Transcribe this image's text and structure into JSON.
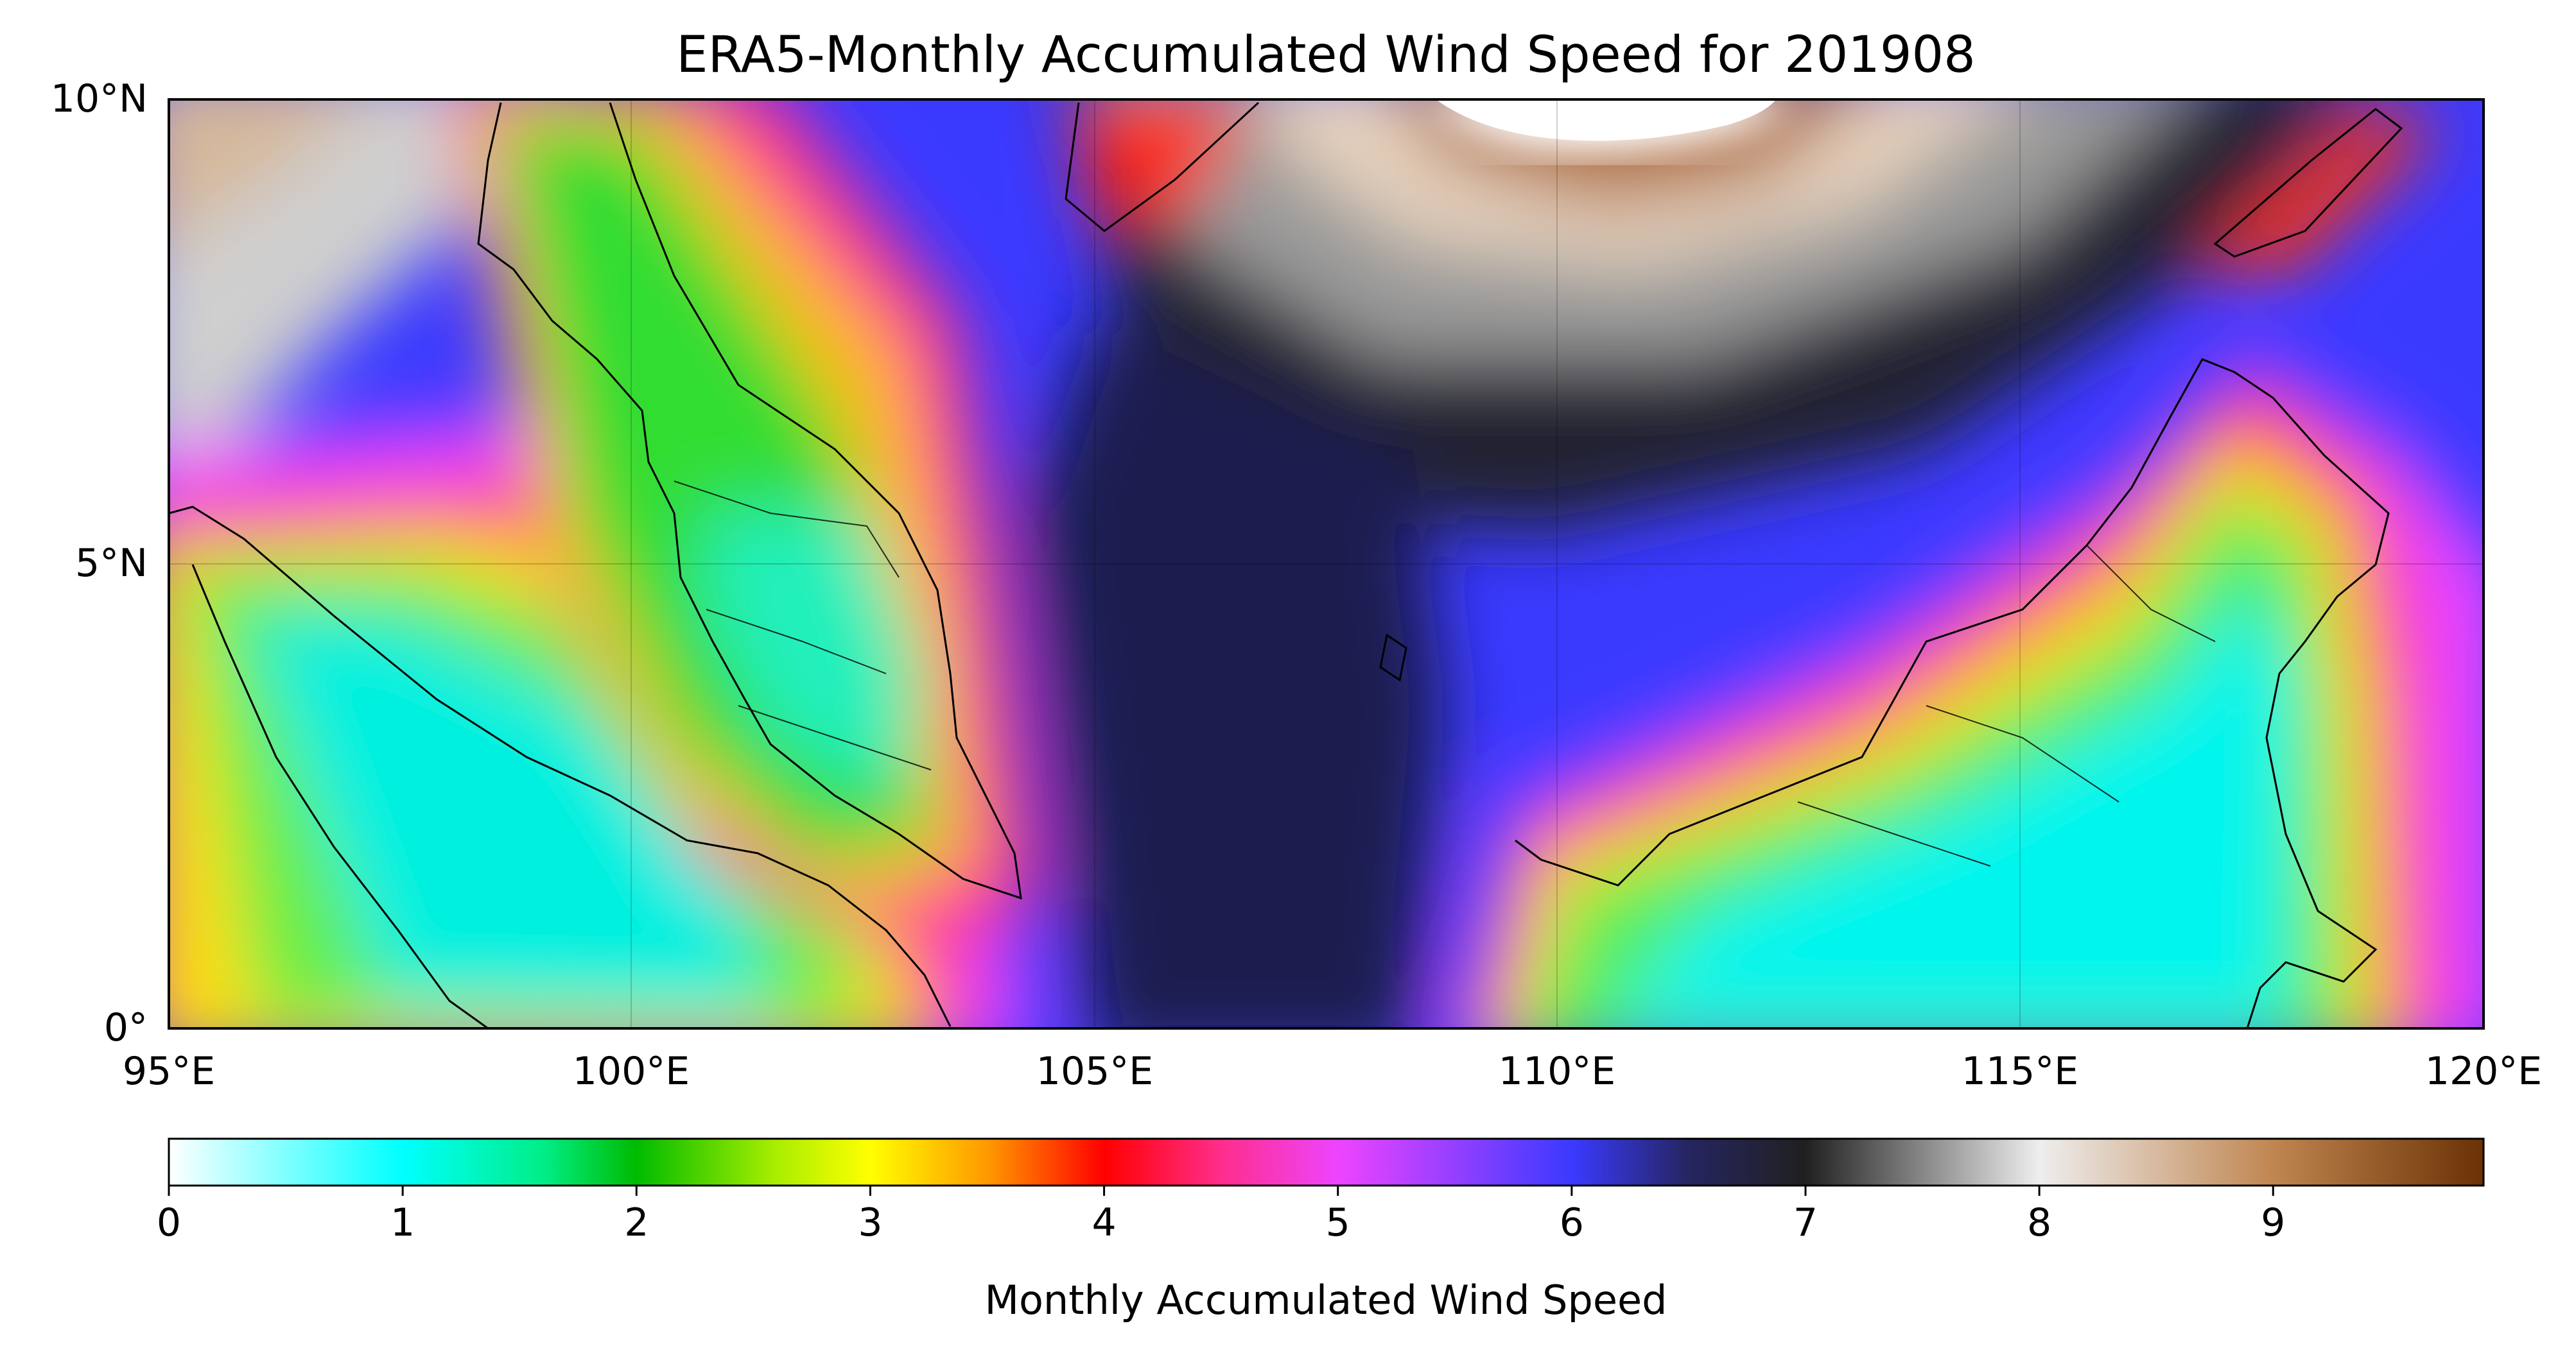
{
  "title": "ERA5-Monthly Accumulated Wind Speed for 201908",
  "map": {
    "lon_range": [
      95,
      120
    ],
    "lat_range": [
      0,
      10
    ],
    "lon_ticks": [
      "95°E",
      "100°E",
      "105°E",
      "110°E",
      "115°E",
      "120°E"
    ],
    "lat_ticks": [
      "0°",
      "5°N",
      "10°N"
    ],
    "gridlines": true
  },
  "colorbar": {
    "label": "Monthly Accumulated Wind Speed",
    "ticks": [
      "0",
      "1",
      "2",
      "3",
      "4",
      "5",
      "6",
      "7",
      "8",
      "9"
    ],
    "range": [
      0,
      9.9
    ],
    "orientation": "horizontal",
    "colormap_stops": [
      {
        "v": 0,
        "c": "#ffffff"
      },
      {
        "v": 1,
        "c": "#00ffff"
      },
      {
        "v": 1.6,
        "c": "#00ee88"
      },
      {
        "v": 2,
        "c": "#00bb00"
      },
      {
        "v": 2.6,
        "c": "#aaee00"
      },
      {
        "v": 3,
        "c": "#ffff00"
      },
      {
        "v": 3.5,
        "c": "#ff9900"
      },
      {
        "v": 4,
        "c": "#ff0000"
      },
      {
        "v": 4.5,
        "c": "#ff2d8c"
      },
      {
        "v": 5,
        "c": "#ee44ff"
      },
      {
        "v": 6,
        "c": "#3a3aff"
      },
      {
        "v": 6.5,
        "c": "#252560"
      },
      {
        "v": 7,
        "c": "#202020"
      },
      {
        "v": 8,
        "c": "#eeeeee"
      },
      {
        "v": 9,
        "c": "#c08650"
      },
      {
        "v": 9.9,
        "c": "#6a3205"
      }
    ]
  }
}
